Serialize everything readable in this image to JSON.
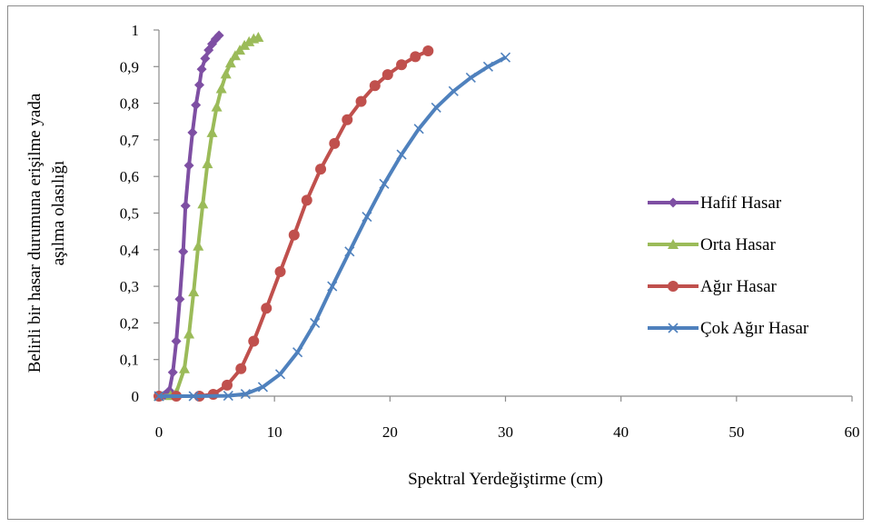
{
  "chart_data": {
    "type": "line",
    "xlabel": "Spektral Yerdeğiştirme (cm)",
    "ylabel_lines": [
      "Belirli bir hasar durumuna erişilme yada",
      "aşılma olasılığı"
    ],
    "xlim": [
      0,
      60
    ],
    "ylim": [
      0,
      1
    ],
    "xticks": [
      0,
      10,
      20,
      30,
      40,
      50,
      60
    ],
    "xtick_labels": [
      "0",
      "10",
      "20",
      "30",
      "40",
      "50",
      "60"
    ],
    "yticks": [
      0,
      0.1,
      0.2,
      0.3,
      0.4,
      0.5,
      0.6,
      0.7,
      0.8,
      0.9,
      1
    ],
    "ytick_labels": [
      "0",
      "0,1",
      "0,2",
      "0,3",
      "0,4",
      "0,5",
      "0,6",
      "0,7",
      "0,8",
      "0,9",
      "1"
    ],
    "grid": false,
    "legend_position": "right",
    "series": [
      {
        "name": "Hafif Hasar",
        "color": "#7e4fa3",
        "marker": "diamond",
        "points": [
          [
            0,
            0
          ],
          [
            0.5,
            0.003
          ],
          [
            0.9,
            0.015
          ],
          [
            1.2,
            0.065
          ],
          [
            1.5,
            0.15
          ],
          [
            1.8,
            0.265
          ],
          [
            2.1,
            0.395
          ],
          [
            2.3,
            0.52
          ],
          [
            2.6,
            0.63
          ],
          [
            2.9,
            0.72
          ],
          [
            3.2,
            0.795
          ],
          [
            3.5,
            0.85
          ],
          [
            3.7,
            0.893
          ],
          [
            4.0,
            0.922
          ],
          [
            4.3,
            0.945
          ],
          [
            4.6,
            0.962
          ],
          [
            4.9,
            0.975
          ],
          [
            5.2,
            0.985
          ]
        ]
      },
      {
        "name": "Orta Hasar",
        "color": "#9bbb59",
        "marker": "triangle",
        "points": [
          [
            0,
            0
          ],
          [
            1,
            0.002
          ],
          [
            1.5,
            0.01
          ],
          [
            2.2,
            0.075
          ],
          [
            2.6,
            0.17
          ],
          [
            3.0,
            0.285
          ],
          [
            3.4,
            0.41
          ],
          [
            3.8,
            0.525
          ],
          [
            4.2,
            0.635
          ],
          [
            4.6,
            0.72
          ],
          [
            5.0,
            0.79
          ],
          [
            5.4,
            0.84
          ],
          [
            5.8,
            0.88
          ],
          [
            6.2,
            0.91
          ],
          [
            6.6,
            0.93
          ],
          [
            7.0,
            0.945
          ],
          [
            7.4,
            0.958
          ],
          [
            7.8,
            0.968
          ],
          [
            8.2,
            0.976
          ],
          [
            8.6,
            0.98
          ]
        ]
      },
      {
        "name": "Ağır Hasar",
        "color": "#c0504d",
        "marker": "circle",
        "points": [
          [
            0,
            0
          ],
          [
            1.5,
            0
          ],
          [
            3.5,
            0
          ],
          [
            4.7,
            0.005
          ],
          [
            5.9,
            0.03
          ],
          [
            7.1,
            0.075
          ],
          [
            8.2,
            0.15
          ],
          [
            9.3,
            0.24
          ],
          [
            10.5,
            0.34
          ],
          [
            11.7,
            0.44
          ],
          [
            12.8,
            0.535
          ],
          [
            14.0,
            0.62
          ],
          [
            15.2,
            0.69
          ],
          [
            16.3,
            0.755
          ],
          [
            17.5,
            0.805
          ],
          [
            18.7,
            0.848
          ],
          [
            19.8,
            0.878
          ],
          [
            21.0,
            0.905
          ],
          [
            22.2,
            0.927
          ],
          [
            23.3,
            0.943
          ]
        ]
      },
      {
        "name": "Çok Ağır Hasar",
        "color": "#4f81bd",
        "marker": "x",
        "points": [
          [
            0,
            0
          ],
          [
            3,
            0
          ],
          [
            6,
            0.001
          ],
          [
            7.5,
            0.006
          ],
          [
            9.0,
            0.025
          ],
          [
            10.5,
            0.06
          ],
          [
            12.0,
            0.12
          ],
          [
            13.5,
            0.2
          ],
          [
            15.0,
            0.3
          ],
          [
            16.5,
            0.395
          ],
          [
            18.0,
            0.49
          ],
          [
            19.5,
            0.58
          ],
          [
            21.0,
            0.66
          ],
          [
            22.5,
            0.73
          ],
          [
            24.0,
            0.788
          ],
          [
            25.5,
            0.833
          ],
          [
            27.0,
            0.87
          ],
          [
            28.5,
            0.9
          ],
          [
            30.0,
            0.925
          ]
        ]
      }
    ]
  }
}
